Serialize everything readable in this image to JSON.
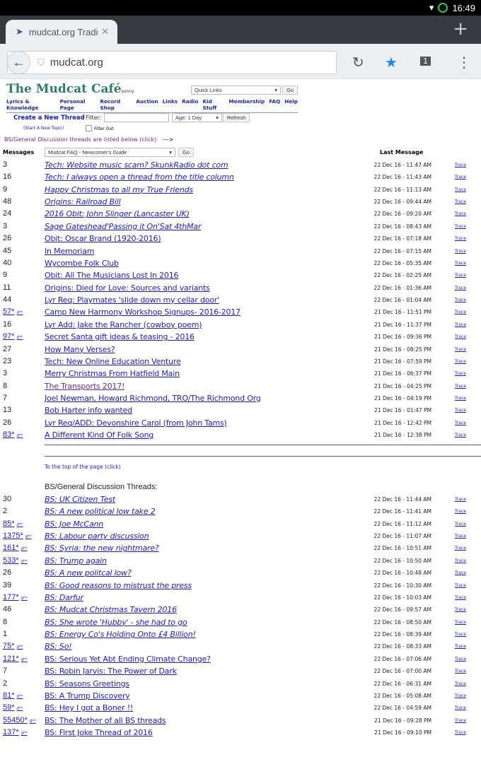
{
  "status_bar": {
    "time": "16:49"
  },
  "browser": {
    "tab_title": "mudcat.org Tradi",
    "url": "mudcat.org",
    "tab_count": "1"
  },
  "site": {
    "logo": "The Mudcat Café",
    "logo_sub": "sonny",
    "quick_links": "Quick Links",
    "go": "Go",
    "nav": [
      "Lyrics & Knowledge",
      "Personal Page",
      "Record Shop",
      "Auction",
      "Links",
      "Radio",
      "Kid Stuff",
      "Membership",
      "FAQ",
      "Help"
    ],
    "create_thread": "Create a New Thread",
    "start_topic": "(Start A New Topic)",
    "filter_label": "Filter:",
    "filter_value": "",
    "age": "Age: 1 Day",
    "refresh": "Refresh",
    "filter_out": "Filter Out",
    "bs_link": "BS/General Discussion threads are listed below (click)",
    "bs_arrow": "--->",
    "messages_header": "Messages",
    "faq_select": "Mudcat FAQ - Newcomer's Guide",
    "last_message_header": "Last Message",
    "top_link": "To the top of the page (click)",
    "bs_heading": "BS/General Discussion Threads:",
    "trace": "Trace",
    "d_link": "d^^"
  },
  "threads": [
    {
      "count": "3",
      "title": "Tech: Website music scam? SkunkRadio dot com",
      "date": "22 Dec 16 - 11:47 AM",
      "italic": true
    },
    {
      "count": "16",
      "title": "Tech: I always open a thread from the title column",
      "date": "22 Dec 16 - 11:43 AM",
      "italic": true
    },
    {
      "count": "9",
      "title": "Happy Christmas to all my True Friends",
      "date": "22 Dec 16 - 11:13 AM",
      "italic": true
    },
    {
      "count": "48",
      "title": "Origins: Railroad Bill",
      "date": "22 Dec 16 - 09:44 AM",
      "italic": true
    },
    {
      "count": "24",
      "title": "2016 Obit: John Slinger (Lancaster UK)",
      "date": "22 Dec 16 - 09:20 AM",
      "italic": true
    },
    {
      "count": "3",
      "title": "Sage Gateshead'Passing it On'Sat 4thMar",
      "date": "22 Dec 16 - 08:43 AM",
      "italic": true
    },
    {
      "count": "26",
      "title": "Obit: Oscar Brand (1920-2016)",
      "date": "22 Dec 16 - 07:18 AM"
    },
    {
      "count": "45",
      "title": "In Memoriam",
      "date": "22 Dec 16 - 07:15 AM"
    },
    {
      "count": "40",
      "title": "Wycombe Folk Club",
      "date": "22 Dec 16 - 05:35 AM"
    },
    {
      "count": "9",
      "title": "Obit: All The Musicians Lost In 2016",
      "date": "22 Dec 16 - 02:25 AM"
    },
    {
      "count": "11",
      "title": "Origins: Died for Love: Sources and variants",
      "date": "22 Dec 16 - 01:36 AM"
    },
    {
      "count": "44",
      "title": "Lyr Req: Playmates 'slide down my cellar door'",
      "date": "22 Dec 16 - 01:04 AM"
    },
    {
      "count": "57*",
      "title": "Camp New Harmony Workshop Signups- 2016-2017",
      "date": "21 Dec 16 - 11:51 PM",
      "linked": true
    },
    {
      "count": "16",
      "title": "Lyr Add: Jake the Rancher (cowboy poem)",
      "date": "21 Dec 16 - 11:37 PM"
    },
    {
      "count": "97*",
      "title": "Secret Santa gift ideas & teasing - 2016",
      "date": "21 Dec 16 - 09:36 PM",
      "linked": true
    },
    {
      "count": "27",
      "title": "How Many Verses?",
      "date": "21 Dec 16 - 08:25 PM"
    },
    {
      "count": "23",
      "title": "Tech: New Online Education Venture",
      "date": "21 Dec 16 - 07:59 PM"
    },
    {
      "count": "3",
      "title": "Merry Christmas From Hatfield Main",
      "date": "21 Dec 16 - 06:37 PM"
    },
    {
      "count": "8",
      "title": "The Transports 2017!",
      "date": "21 Dec 16 - 04:25 PM",
      "visited": true
    },
    {
      "count": "7",
      "title": "Joel Newman, Howard Richmond, TRO/The Richmond Org",
      "date": "21 Dec 16 - 04:19 PM"
    },
    {
      "count": "13",
      "title": "Bob Harter info wanted",
      "date": "21 Dec 16 - 01:47 PM"
    },
    {
      "count": "26",
      "title": "Lyr Req/ADD: Devonshire Carol (from John Tams)",
      "date": "21 Dec 16 - 12:42 PM"
    },
    {
      "count": "83*",
      "title": "A Different Kind Of Folk Song",
      "date": "21 Dec 16 - 12:38 PM",
      "linked": true
    }
  ],
  "bs_threads": [
    {
      "count": "30",
      "title": "BS: UK Citizen Test",
      "date": "22 Dec 16 - 11:44 AM",
      "italic": true
    },
    {
      "count": "2",
      "title": "BS: A new political low take 2",
      "date": "22 Dec 16 - 11:41 AM",
      "italic": true
    },
    {
      "count": "85*",
      "title": "BS: Joe McCann",
      "date": "22 Dec 16 - 11:12 AM",
      "italic": true,
      "linked": true
    },
    {
      "count": "1375*",
      "title": "BS: Labour party discussion",
      "date": "22 Dec 16 - 11:07 AM",
      "italic": true,
      "linked": true
    },
    {
      "count": "161*",
      "title": "BS: Syria: the new nightmare?",
      "date": "22 Dec 16 - 10:51 AM",
      "italic": true,
      "linked": true
    },
    {
      "count": "533*",
      "title": "BS: Trump again",
      "date": "22 Dec 16 - 10:50 AM",
      "italic": true,
      "linked": true
    },
    {
      "count": "26",
      "title": "BS: A new politcal low?",
      "date": "22 Dec 16 - 10:48 AM",
      "italic": true
    },
    {
      "count": "39",
      "title": "BS: Good reasons to mistrust the press",
      "date": "22 Dec 16 - 10:30 AM",
      "italic": true
    },
    {
      "count": "177*",
      "title": "BS: Darfur",
      "date": "22 Dec 16 - 10:03 AM",
      "italic": true,
      "linked": true
    },
    {
      "count": "46",
      "title": "BS: Mudcat Christmas Tavern 2016",
      "date": "22 Dec 16 - 09:57 AM",
      "italic": true
    },
    {
      "count": "8",
      "title": "BS: She wrote 'Hubby' - she had to go",
      "date": "22 Dec 16 - 08:50 AM",
      "italic": true
    },
    {
      "count": "1",
      "title": "BS: Energy Co's Holding Onto £4 Billion!",
      "date": "22 Dec 16 - 08:39 AM",
      "italic": true
    },
    {
      "count": "75*",
      "title": "BS: So!",
      "date": "22 Dec 16 - 08:33 AM",
      "italic": true,
      "linked": true
    },
    {
      "count": "121*",
      "title": "BS: Serious Yet Abt Ending Climate Change?",
      "date": "22 Dec 16 - 07:06 AM",
      "linked": true
    },
    {
      "count": "7",
      "title": "BS: Robin Jarvis: The Power of Dark",
      "date": "22 Dec 16 - 07:00 AM"
    },
    {
      "count": "2",
      "title": "BS: Seasons Greetings",
      "date": "22 Dec 16 - 06:31 AM"
    },
    {
      "count": "81*",
      "title": "BS: A Trump Discovery",
      "date": "22 Dec 16 - 05:08 AM",
      "linked": true
    },
    {
      "count": "59*",
      "title": "BS: Hey I got a Boner !!",
      "date": "22 Dec 16 - 04:59 AM",
      "linked": true
    },
    {
      "count": "55450*",
      "title": "BS: The Mother of all BS threads",
      "date": "21 Dec 16 - 09:28 PM",
      "linked": true
    },
    {
      "count": "137*",
      "title": "BS: First Joke Thread of 2016",
      "date": "21 Dec 16 - 09:10 PM",
      "linked": true
    }
  ]
}
